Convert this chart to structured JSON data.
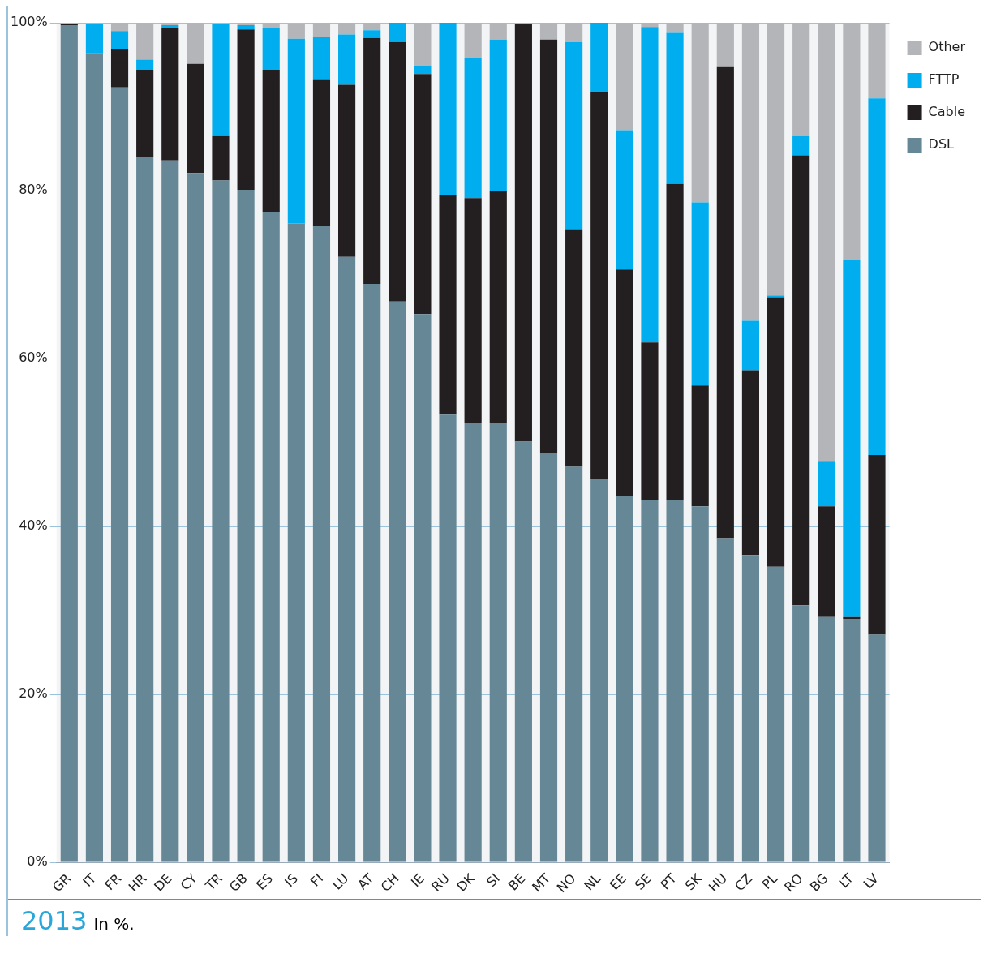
{
  "chart_data": {
    "type": "bar",
    "title": "2013",
    "subtitle": "In %.",
    "stacked": true,
    "categories": [
      "GR",
      "IT",
      "FR",
      "HR",
      "DE",
      "CY",
      "TR",
      "GB",
      "ES",
      "IS",
      "FI",
      "LU",
      "AT",
      "CH",
      "IE",
      "RU",
      "DK",
      "SI",
      "BE",
      "MT",
      "NO",
      "NL",
      "EE",
      "SE",
      "PT",
      "SK",
      "HU",
      "CZ",
      "PL",
      "RO",
      "BG",
      "LT",
      "LV"
    ],
    "series": [
      {
        "name": "DSL",
        "color": "#668796",
        "values": [
          99.7,
          96.4,
          92.3,
          84.0,
          83.6,
          82.1,
          81.2,
          80.1,
          77.5,
          76.1,
          75.8,
          72.1,
          68.9,
          66.8,
          65.3,
          53.4,
          52.3,
          52.3,
          50.1,
          48.8,
          47.1,
          45.7,
          43.6,
          43.1,
          43.1,
          42.4,
          38.6,
          36.6,
          35.2,
          30.6,
          29.2,
          29.0,
          27.1
        ]
      },
      {
        "name": "Cable",
        "color": "#231f20",
        "values": [
          0.2,
          0,
          4.5,
          10.4,
          15.8,
          13.0,
          5.3,
          19.1,
          16.9,
          null,
          17.4,
          20.5,
          29.3,
          30.9,
          28.6,
          26.1,
          26.8,
          27.6,
          49.7,
          49.2,
          28.3,
          46.1,
          27.0,
          18.8,
          37.7,
          14.4,
          56.2,
          22.0,
          32.1,
          53.6,
          13.2,
          0.2,
          21.4
        ]
      },
      {
        "name": "FTTP",
        "color": "#00aeef",
        "values": [
          0,
          3.4,
          2.2,
          1.2,
          0.3,
          0,
          13.4,
          0.5,
          5.0,
          22.0,
          5.1,
          6.0,
          0.9,
          2.3,
          1.0,
          20.5,
          16.7,
          18.1,
          0,
          0,
          22.3,
          8.2,
          16.6,
          37.6,
          18.0,
          21.8,
          0,
          5.9,
          0.2,
          2.3,
          5.4,
          42.5,
          42.5
        ]
      },
      {
        "name": "Other",
        "color": "#b3b5b8",
        "values": [
          null,
          0.2,
          1.0,
          4.4,
          0.3,
          4.9,
          null,
          0.3,
          0.6,
          1.8,
          1.7,
          1.4,
          0.9,
          0,
          5.1,
          0,
          4.2,
          2.0,
          0.2,
          2.0,
          2.3,
          0,
          12.8,
          0.5,
          1.2,
          21.4,
          5.2,
          35.5,
          32.5,
          13.5,
          52.2,
          28.3,
          9.0
        ]
      }
    ],
    "ylim": [
      0,
      100
    ],
    "yticks": [
      {
        "value": 0,
        "label": "0%"
      },
      {
        "value": 20,
        "label": "20%"
      },
      {
        "value": 40,
        "label": "40%"
      },
      {
        "value": 60,
        "label": "60%"
      },
      {
        "value": 80,
        "label": "80%"
      },
      {
        "value": 100,
        "label": "100%"
      }
    ],
    "grid": "y",
    "legend": "top right"
  }
}
